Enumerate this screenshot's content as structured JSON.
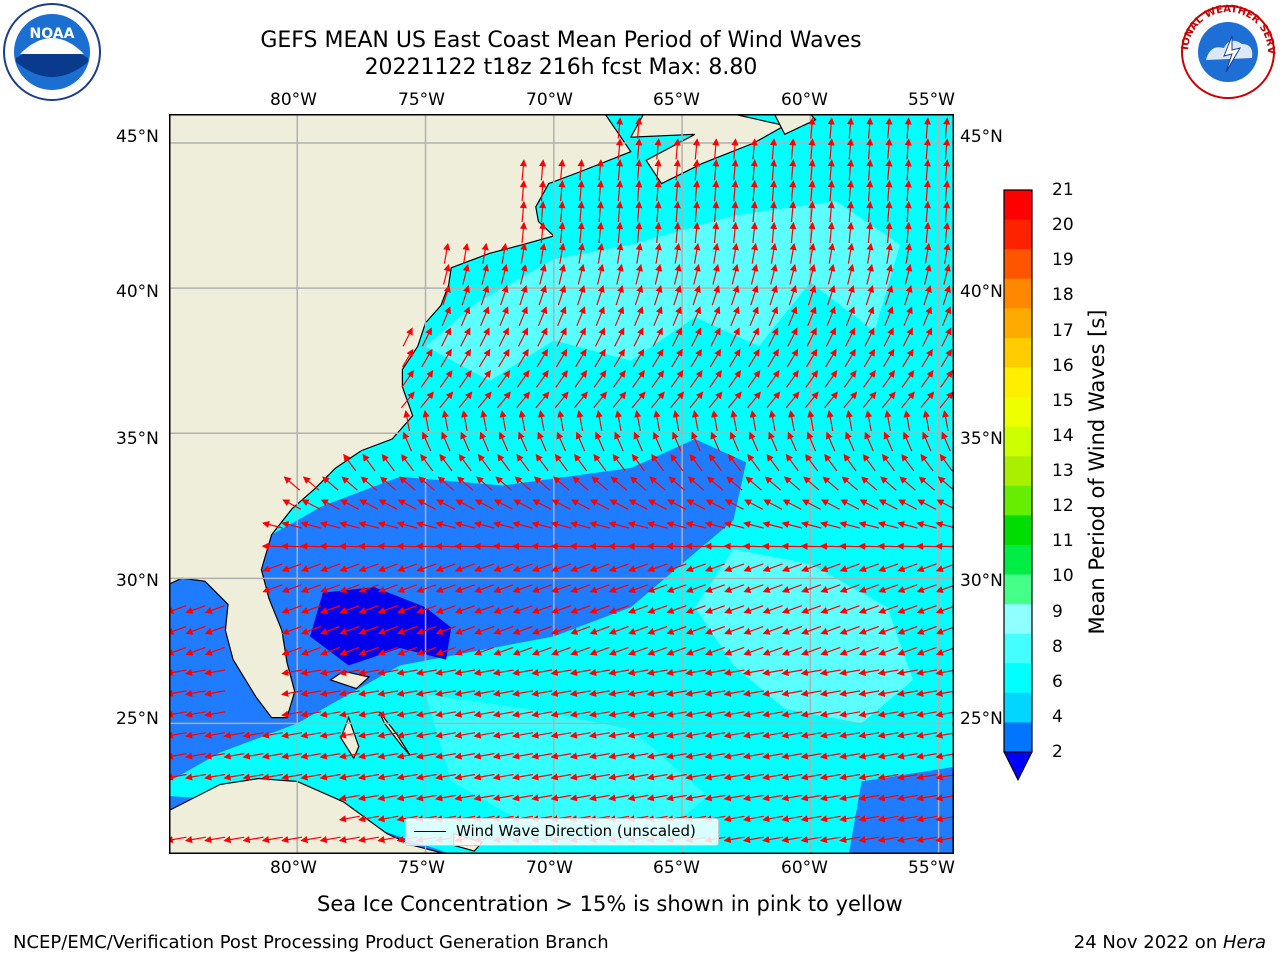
{
  "title": {
    "line1": "GEFS MEAN US East Coast Mean Period of Wind Waves",
    "line2": "20221122 t18z 216h fcst   Max: 8.80"
  },
  "logos": {
    "left": "NOAA",
    "right": "NATIONAL WEATHER SERVICE"
  },
  "map": {
    "lon_labels": [
      "80°W",
      "75°W",
      "70°W",
      "65°W",
      "60°W",
      "55°W"
    ],
    "lat_labels": [
      "45°N",
      "40°N",
      "35°N",
      "30°N",
      "25°N"
    ],
    "lon_values": [
      -80,
      -75,
      -70,
      -65,
      -60,
      -55
    ],
    "lat_values": [
      45,
      40,
      35,
      30,
      25
    ],
    "extent": {
      "lon_min": -85,
      "lon_max": -54.4,
      "lat_min": 20.5,
      "lat_max": 46
    },
    "land_color": "#efeedb",
    "arrow_color": "#ff0000",
    "legend_label": "Wind Wave Direction (unscaled)"
  },
  "colorbar": {
    "label": "Mean Period of Wind Waves [s]",
    "ticks": [
      "2",
      "4",
      "6",
      "8",
      "9",
      "10",
      "11",
      "12",
      "13",
      "14",
      "15",
      "16",
      "17",
      "18",
      "19",
      "20",
      "21"
    ],
    "colors": [
      "#0076ff",
      "#00d6ff",
      "#00ffff",
      "#44ffff",
      "#8fffff",
      "#44ff88",
      "#00ee44",
      "#00dd00",
      "#66ee00",
      "#aaee00",
      "#ccff00",
      "#eeff00",
      "#ffee00",
      "#ffcc00",
      "#ffaa00",
      "#ff8800",
      "#ff5500",
      "#ff2200",
      "#ff0000"
    ],
    "extend_color": "#0000ff"
  },
  "footer": {
    "ice_note": "Sea Ice Concentration > 15% is shown in pink to yellow",
    "branch": "NCEP/EMC/Verification Post Processing Product Generation Branch",
    "date_prefix": "24 Nov 2022 on ",
    "machine": "Hera"
  }
}
